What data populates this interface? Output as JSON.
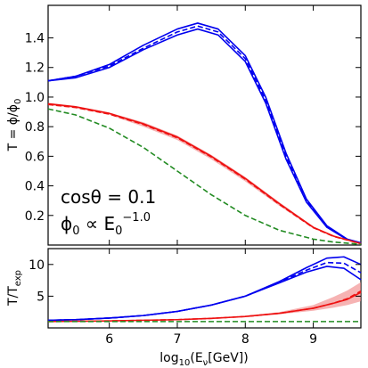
{
  "chart_data": [
    {
      "type": "line",
      "panel": "upper",
      "xlabel_main": "log",
      "xlabel_sub": "10",
      "xlabel_tail": "(E",
      "xlabel_nu": "ν",
      "xlabel_end": "[GeV])",
      "ylabel": "T = ϕ/ϕ",
      "ylabel_sub": "0",
      "xlim": [
        5.1,
        9.7
      ],
      "ylim": [
        0.0,
        1.62
      ],
      "xticks": [
        "6",
        "7",
        "8",
        "9"
      ],
      "xtick_values": [
        6,
        7,
        8,
        9
      ],
      "yticks": [
        "0.2",
        "0.4",
        "0.6",
        "0.8",
        "1.0",
        "1.2",
        "1.4"
      ],
      "ytick_values": [
        0.2,
        0.4,
        0.6,
        0.8,
        1.0,
        1.2,
        1.4
      ],
      "annotation_line1": "cosθ = 0.1",
      "annotation_line2_a": "ϕ",
      "annotation_line2_sub": "0",
      "annotation_line2_b": " ∝ E",
      "annotation_line2_esub": "0",
      "annotation_line2_exp": "−1.0",
      "series": [
        {
          "color": "#0000ee",
          "style": "solid",
          "x": [
            5.1,
            5.5,
            6.0,
            6.5,
            7.0,
            7.3,
            7.6,
            8.0,
            8.3,
            8.6,
            8.9,
            9.2,
            9.5,
            9.7
          ],
          "y": [
            1.11,
            1.14,
            1.22,
            1.35,
            1.46,
            1.5,
            1.46,
            1.28,
            1.0,
            0.62,
            0.31,
            0.13,
            0.04,
            0.015
          ]
        },
        {
          "color": "#0000ee",
          "style": "dashed",
          "x": [
            5.1,
            5.5,
            6.0,
            6.5,
            7.0,
            7.3,
            7.6,
            8.0,
            8.3,
            8.6,
            8.9,
            9.2,
            9.5,
            9.7
          ],
          "y": [
            1.11,
            1.14,
            1.21,
            1.33,
            1.44,
            1.48,
            1.44,
            1.26,
            0.98,
            0.6,
            0.3,
            0.125,
            0.038,
            0.014
          ]
        },
        {
          "color": "#0000ee",
          "style": "solid",
          "x": [
            5.1,
            5.5,
            6.0,
            6.5,
            7.0,
            7.3,
            7.6,
            8.0,
            8.3,
            8.6,
            8.9,
            9.2,
            9.5,
            9.7
          ],
          "y": [
            1.11,
            1.13,
            1.2,
            1.32,
            1.42,
            1.46,
            1.42,
            1.24,
            0.96,
            0.58,
            0.29,
            0.12,
            0.036,
            0.013
          ]
        },
        {
          "color": "#ee1111",
          "style": "solid",
          "x": [
            5.1,
            5.5,
            6.0,
            6.5,
            7.0,
            7.5,
            8.0,
            8.5,
            9.0,
            9.3,
            9.7
          ],
          "y": [
            0.955,
            0.935,
            0.89,
            0.82,
            0.73,
            0.6,
            0.45,
            0.28,
            0.12,
            0.06,
            0.01
          ]
        },
        {
          "color": "#ee1111",
          "style": "dashed",
          "x": [
            5.1,
            5.5,
            6.0,
            6.5,
            7.0,
            7.5,
            8.0,
            8.5,
            9.0,
            9.3,
            9.7
          ],
          "y": [
            0.95,
            0.93,
            0.885,
            0.815,
            0.725,
            0.595,
            0.445,
            0.275,
            0.117,
            0.058,
            0.009
          ]
        },
        {
          "color": "#228b22",
          "style": "dashed",
          "x": [
            5.1,
            5.5,
            6.0,
            6.5,
            7.0,
            7.5,
            8.0,
            8.5,
            9.0,
            9.3,
            9.7
          ],
          "y": [
            0.92,
            0.88,
            0.79,
            0.66,
            0.5,
            0.34,
            0.2,
            0.1,
            0.04,
            0.02,
            0.005
          ]
        }
      ],
      "band": {
        "color": "#f08080",
        "x": [
          5.1,
          5.5,
          6.0,
          6.5,
          7.0,
          7.5,
          8.0,
          8.5,
          9.0,
          9.3,
          9.7
        ],
        "upper": [
          0.96,
          0.94,
          0.895,
          0.83,
          0.74,
          0.61,
          0.46,
          0.29,
          0.125,
          0.064,
          0.012
        ],
        "lower": [
          0.945,
          0.925,
          0.88,
          0.8,
          0.71,
          0.58,
          0.43,
          0.265,
          0.112,
          0.054,
          0.008
        ]
      }
    },
    {
      "type": "line",
      "panel": "lower",
      "ylabel": "T/T",
      "ylabel_sub": "exp",
      "xlim": [
        5.1,
        9.7
      ],
      "ylim": [
        0.0,
        12.5
      ],
      "yticks": [
        "5",
        "10"
      ],
      "ytick_values": [
        5,
        10
      ],
      "series": [
        {
          "color": "#0000ee",
          "style": "solid",
          "x": [
            5.1,
            5.5,
            6.0,
            6.5,
            7.0,
            7.5,
            8.0,
            8.5,
            8.9,
            9.2,
            9.45,
            9.7
          ],
          "y": [
            1.2,
            1.3,
            1.55,
            1.95,
            2.6,
            3.6,
            5.0,
            7.3,
            9.5,
            11.0,
            11.2,
            10.0
          ]
        },
        {
          "color": "#0000ee",
          "style": "dashed",
          "x": [
            5.1,
            5.5,
            6.0,
            6.5,
            7.0,
            7.5,
            8.0,
            8.5,
            8.9,
            9.2,
            9.45,
            9.7
          ],
          "y": [
            1.2,
            1.3,
            1.55,
            1.95,
            2.6,
            3.6,
            5.0,
            7.2,
            9.1,
            10.3,
            10.2,
            8.7
          ]
        },
        {
          "color": "#0000ee",
          "style": "solid",
          "x": [
            5.1,
            5.5,
            6.0,
            6.5,
            7.0,
            7.5,
            8.0,
            8.5,
            8.9,
            9.2,
            9.45,
            9.7
          ],
          "y": [
            1.2,
            1.3,
            1.55,
            1.95,
            2.6,
            3.6,
            5.0,
            7.1,
            8.8,
            9.7,
            9.4,
            7.6
          ]
        },
        {
          "color": "#ee1111",
          "style": "solid",
          "x": [
            5.1,
            5.5,
            6.0,
            6.5,
            7.0,
            7.5,
            8.0,
            8.5,
            9.0,
            9.3,
            9.5,
            9.7
          ],
          "y": [
            1.0,
            1.05,
            1.1,
            1.2,
            1.3,
            1.5,
            1.8,
            2.3,
            3.1,
            3.9,
            4.5,
            5.6
          ]
        },
        {
          "color": "#ee1111",
          "style": "dashed",
          "x": [
            5.1,
            5.5,
            6.0,
            6.5,
            7.0,
            7.5,
            8.0,
            8.5,
            9.0,
            9.3,
            9.5,
            9.7
          ],
          "y": [
            1.0,
            1.05,
            1.1,
            1.2,
            1.3,
            1.5,
            1.8,
            2.3,
            3.1,
            3.9,
            4.6,
            5.8
          ]
        },
        {
          "color": "#228b22",
          "style": "dashed",
          "x": [
            5.1,
            9.7
          ],
          "y": [
            1.0,
            1.0
          ]
        }
      ],
      "band": {
        "color": "#f08080",
        "x": [
          5.1,
          5.5,
          6.0,
          6.5,
          7.0,
          7.5,
          8.0,
          8.5,
          9.0,
          9.3,
          9.5,
          9.7
        ],
        "upper": [
          1.02,
          1.07,
          1.13,
          1.23,
          1.35,
          1.57,
          1.92,
          2.5,
          3.6,
          4.9,
          5.9,
          7.2
        ],
        "lower": [
          0.98,
          1.03,
          1.07,
          1.17,
          1.26,
          1.43,
          1.7,
          2.15,
          2.7,
          3.2,
          3.6,
          4.2
        ]
      }
    }
  ]
}
